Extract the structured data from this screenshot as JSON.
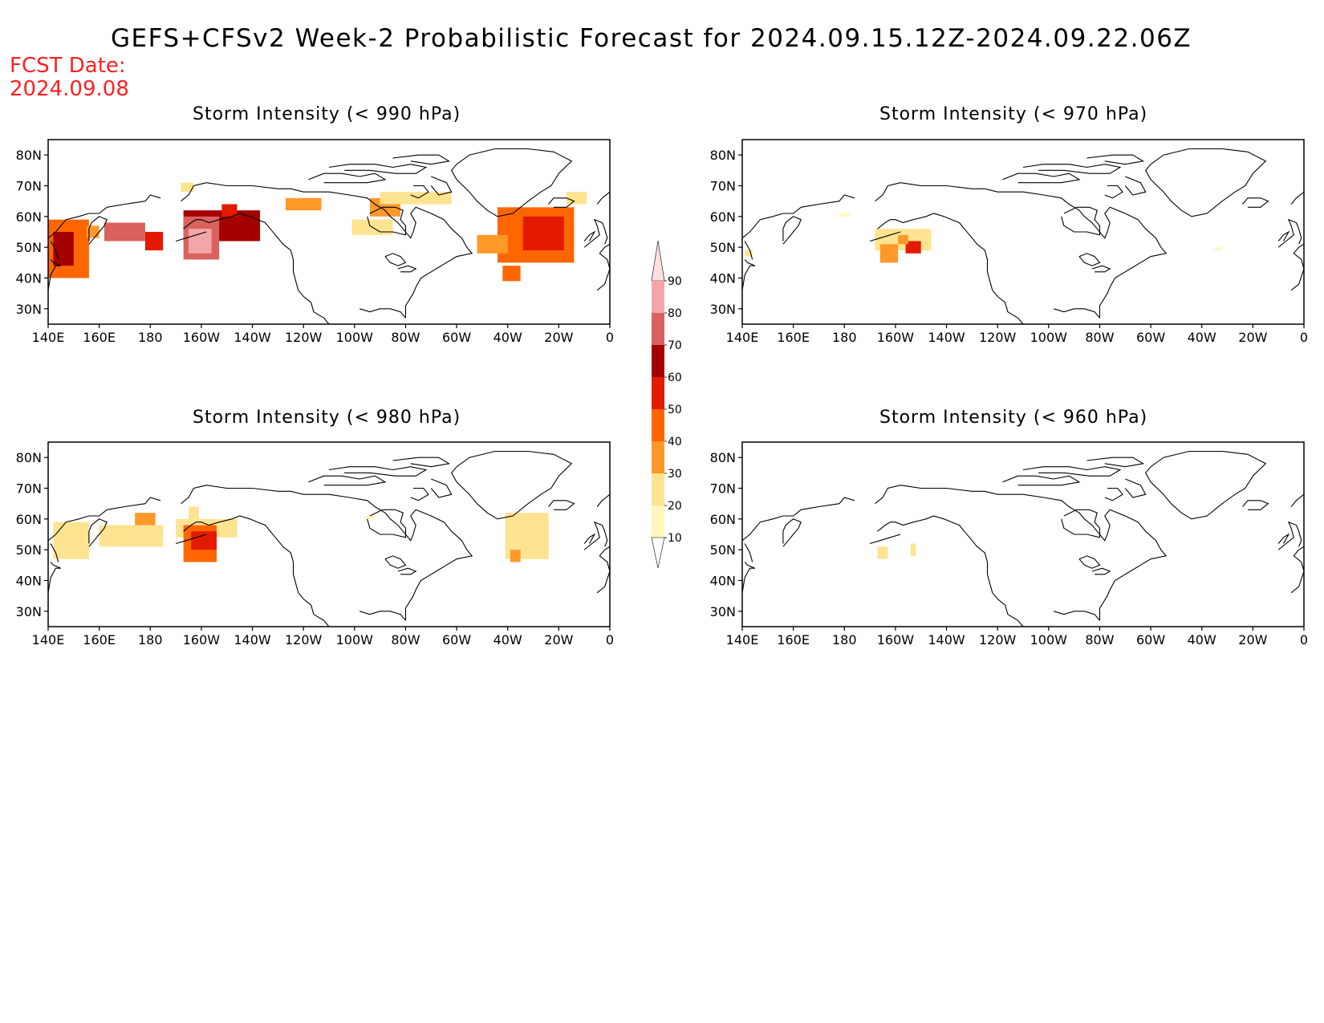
{
  "title": "GEFS+CFSv2 Week-2 Probabilistic Forecast for 2024.09.15.12Z-2024.09.22.06Z",
  "fcst_date": {
    "label": "FCST Date:",
    "value": "2024.09.08"
  },
  "axes": {
    "lat_ticks": [
      "80N",
      "70N",
      "60N",
      "50N",
      "40N",
      "30N"
    ],
    "lat_values": [
      80,
      70,
      60,
      50,
      40,
      30
    ],
    "lon_ticks": [
      "140E",
      "160E",
      "180",
      "160W",
      "140W",
      "120W",
      "100W",
      "80W",
      "60W",
      "40W",
      "20W",
      "0"
    ],
    "lon_values": [
      140,
      160,
      180,
      200,
      220,
      240,
      260,
      280,
      300,
      320,
      340,
      360
    ],
    "lon_range": [
      140,
      360
    ],
    "lat_range": [
      25,
      85
    ]
  },
  "colorbar": {
    "levels": [
      10,
      20,
      30,
      40,
      50,
      60,
      70,
      80,
      90
    ],
    "colors": [
      "#fff7bc",
      "#fee391",
      "#fe9929",
      "#ff6600",
      "#e31a00",
      "#a50000",
      "#d9625f",
      "#f2a6a8",
      "#fde0e2"
    ]
  },
  "colors": {
    "coast": "#000000",
    "title": "#000000",
    "fcst": "#ff2020"
  },
  "panels": [
    {
      "title": "Storm Intensity (< 990 hPa)",
      "regions": [
        {
          "lon": [
            140,
            156
          ],
          "lat": [
            40,
            59
          ],
          "level": 40
        },
        {
          "lon": [
            142,
            150
          ],
          "lat": [
            44,
            55
          ],
          "level": 60
        },
        {
          "lon": [
            155,
            160
          ],
          "lat": [
            53,
            57
          ],
          "level": 30
        },
        {
          "lon": [
            162,
            178
          ],
          "lat": [
            52,
            58
          ],
          "level": 70
        },
        {
          "lon": [
            178,
            185
          ],
          "lat": [
            49,
            55
          ],
          "level": 50
        },
        {
          "lon": [
            193,
            223
          ],
          "lat": [
            52,
            62
          ],
          "level": 60
        },
        {
          "lon": [
            193,
            207
          ],
          "lat": [
            46,
            60
          ],
          "level": 70
        },
        {
          "lon": [
            195,
            204
          ],
          "lat": [
            48,
            56
          ],
          "level": 80
        },
        {
          "lon": [
            208,
            214
          ],
          "lat": [
            60,
            64
          ],
          "level": 50
        },
        {
          "lon": [
            192,
            197
          ],
          "lat": [
            68,
            71
          ],
          "level": 20
        },
        {
          "lon": [
            233,
            247
          ],
          "lat": [
            62,
            66
          ],
          "level": 30
        },
        {
          "lon": [
            266,
            278
          ],
          "lat": [
            60,
            66
          ],
          "level": 30
        },
        {
          "lon": [
            259,
            275
          ],
          "lat": [
            54,
            59
          ],
          "level": 20
        },
        {
          "lon": [
            270,
            298
          ],
          "lat": [
            64,
            68
          ],
          "level": 20
        },
        {
          "lon": [
            316,
            346
          ],
          "lat": [
            45,
            63
          ],
          "level": 40
        },
        {
          "lon": [
            326,
            342
          ],
          "lat": [
            49,
            60
          ],
          "level": 50
        },
        {
          "lon": [
            308,
            320
          ],
          "lat": [
            48,
            54
          ],
          "level": 30
        },
        {
          "lon": [
            318,
            325
          ],
          "lat": [
            39,
            44
          ],
          "level": 40
        },
        {
          "lon": [
            343,
            351
          ],
          "lat": [
            64,
            68
          ],
          "level": 20
        }
      ]
    },
    {
      "title": "Storm Intensity (< 970 hPa)",
      "regions": [
        {
          "lon": [
            192,
            214
          ],
          "lat": [
            49,
            56
          ],
          "level": 20
        },
        {
          "lon": [
            194,
            201
          ],
          "lat": [
            45,
            51
          ],
          "level": 30
        },
        {
          "lon": [
            204,
            210
          ],
          "lat": [
            48,
            52
          ],
          "level": 50
        },
        {
          "lon": [
            201,
            205
          ],
          "lat": [
            51,
            54
          ],
          "level": 30
        },
        {
          "lon": [
            178,
            182
          ],
          "lat": [
            60,
            61
          ],
          "level": 10
        },
        {
          "lon": [
            141,
            144
          ],
          "lat": [
            47,
            49
          ],
          "level": 20
        },
        {
          "lon": [
            325,
            328
          ],
          "lat": [
            49,
            50
          ],
          "level": 10
        }
      ]
    },
    {
      "title": "Storm Intensity (< 980 hPa)",
      "regions": [
        {
          "lon": [
            142,
            156
          ],
          "lat": [
            47,
            59
          ],
          "level": 20
        },
        {
          "lon": [
            160,
            185
          ],
          "lat": [
            51,
            58
          ],
          "level": 20
        },
        {
          "lon": [
            174,
            182
          ],
          "lat": [
            58,
            62
          ],
          "level": 30
        },
        {
          "lon": [
            190,
            214
          ],
          "lat": [
            54,
            60
          ],
          "level": 20
        },
        {
          "lon": [
            193,
            206
          ],
          "lat": [
            46,
            58
          ],
          "level": 40
        },
        {
          "lon": [
            196,
            206
          ],
          "lat": [
            50,
            56
          ],
          "level": 50
        },
        {
          "lon": [
            195,
            199
          ],
          "lat": [
            60,
            64
          ],
          "level": 20
        },
        {
          "lon": [
            319,
            336
          ],
          "lat": [
            47,
            62
          ],
          "level": 20
        },
        {
          "lon": [
            321,
            325
          ],
          "lat": [
            46,
            50
          ],
          "level": 30
        },
        {
          "lon": [
            264,
            268
          ],
          "lat": [
            60,
            61
          ],
          "level": 10
        }
      ]
    },
    {
      "title": "Storm Intensity (< 960 hPa)",
      "regions": [
        {
          "lon": [
            193,
            197
          ],
          "lat": [
            47,
            51
          ],
          "level": 20
        },
        {
          "lon": [
            206,
            208
          ],
          "lat": [
            48,
            52
          ],
          "level": 20
        }
      ]
    }
  ]
}
